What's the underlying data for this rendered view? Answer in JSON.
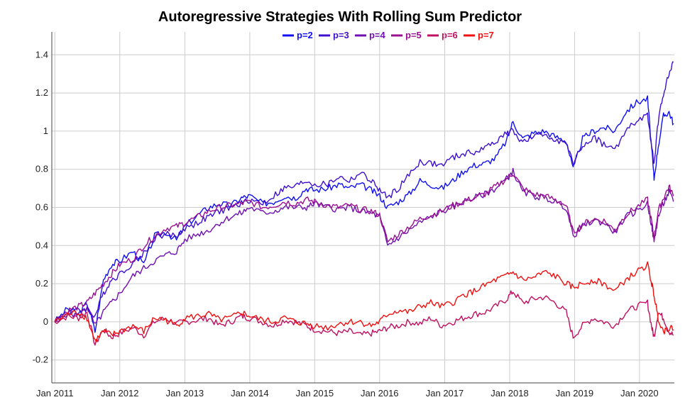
{
  "chart_data": {
    "type": "line",
    "title": "Autoregressive Strategies With Rolling Sum Predictor",
    "xlabel": "",
    "ylabel": "",
    "xlim": [
      "2010-12-15",
      "2020-07-15"
    ],
    "ylim": [
      -0.32,
      1.52
    ],
    "x_ticks": [
      "2011-01-01",
      "2012-01-01",
      "2013-01-01",
      "2014-01-01",
      "2015-01-01",
      "2016-01-01",
      "2017-01-01",
      "2018-01-01",
      "2019-01-01",
      "2020-01-01"
    ],
    "x_tick_labels": [
      "Jan 2011",
      "Jan 2012",
      "Jan 2013",
      "Jan 2014",
      "Jan 2015",
      "Jan 2016",
      "Jan 2017",
      "Jan 2018",
      "Jan 2019",
      "Jan 2020"
    ],
    "y_ticks": [
      -0.2,
      0,
      0.2,
      0.4,
      0.6,
      0.8,
      1,
      1.2,
      1.4
    ],
    "y_tick_labels": [
      "-0.2",
      "0",
      "0.2",
      "0.4",
      "0.6",
      "0.8",
      "1",
      "1.2",
      "1.4"
    ],
    "grid": true,
    "legend_position": "top-center",
    "x": [
      "2010-12-31",
      "2011-03-15",
      "2011-05-15",
      "2011-07-01",
      "2011-08-15",
      "2011-10-01",
      "2011-11-15",
      "2012-01-01",
      "2012-03-15",
      "2012-05-15",
      "2012-07-15",
      "2012-09-15",
      "2012-11-15",
      "2013-01-01",
      "2013-03-15",
      "2013-05-15",
      "2013-07-15",
      "2013-09-15",
      "2013-11-15",
      "2014-01-01",
      "2014-03-15",
      "2014-05-15",
      "2014-07-15",
      "2014-09-15",
      "2014-11-15",
      "2015-01-01",
      "2015-03-15",
      "2015-05-15",
      "2015-07-15",
      "2015-09-15",
      "2015-11-15",
      "2016-01-01",
      "2016-02-15",
      "2016-04-15",
      "2016-06-15",
      "2016-08-15",
      "2016-10-15",
      "2016-12-15",
      "2017-02-15",
      "2017-04-15",
      "2017-06-15",
      "2017-08-15",
      "2017-10-15",
      "2017-12-15",
      "2018-01-20",
      "2018-03-15",
      "2018-05-15",
      "2018-07-15",
      "2018-09-15",
      "2018-11-15",
      "2018-12-24",
      "2019-02-15",
      "2019-04-15",
      "2019-06-15",
      "2019-08-15",
      "2019-10-15",
      "2019-12-15",
      "2020-02-15",
      "2020-03-10",
      "2020-03-23",
      "2020-04-15",
      "2020-05-15",
      "2020-06-15",
      "2020-07-10"
    ],
    "series": [
      {
        "name": "p=2",
        "color": "#1010f0",
        "values": [
          0.0,
          0.07,
          0.04,
          0.1,
          -0.05,
          0.22,
          0.3,
          0.32,
          0.37,
          0.3,
          0.45,
          0.47,
          0.43,
          0.5,
          0.56,
          0.6,
          0.62,
          0.61,
          0.65,
          0.66,
          0.62,
          0.63,
          0.66,
          0.65,
          0.7,
          0.69,
          0.7,
          0.72,
          0.7,
          0.72,
          0.69,
          0.66,
          0.6,
          0.63,
          0.67,
          0.74,
          0.72,
          0.7,
          0.74,
          0.79,
          0.82,
          0.83,
          0.86,
          0.95,
          1.05,
          0.96,
          0.99,
          1.0,
          0.97,
          0.95,
          0.8,
          0.96,
          1.0,
          1.02,
          1.0,
          1.1,
          1.15,
          1.17,
          0.9,
          0.75,
          0.92,
          1.08,
          1.1,
          1.04
        ]
      },
      {
        "name": "p=3",
        "color": "#4010d0",
        "values": [
          0.0,
          0.05,
          0.06,
          0.07,
          0.03,
          0.15,
          0.22,
          0.25,
          0.31,
          0.36,
          0.44,
          0.46,
          0.45,
          0.49,
          0.52,
          0.55,
          0.58,
          0.6,
          0.62,
          0.64,
          0.62,
          0.66,
          0.7,
          0.71,
          0.74,
          0.72,
          0.72,
          0.76,
          0.74,
          0.78,
          0.74,
          0.69,
          0.65,
          0.7,
          0.77,
          0.84,
          0.83,
          0.82,
          0.86,
          0.88,
          0.89,
          0.91,
          0.95,
          0.99,
          1.0,
          0.94,
          0.97,
          0.98,
          0.96,
          0.93,
          0.83,
          0.92,
          0.97,
          0.93,
          0.9,
          1.0,
          1.05,
          1.08,
          0.92,
          0.82,
          1.05,
          1.2,
          1.3,
          1.36
        ]
      },
      {
        "name": "p=4",
        "color": "#7010b0",
        "values": [
          0.0,
          0.05,
          0.03,
          0.08,
          -0.02,
          0.05,
          0.1,
          0.15,
          0.24,
          0.28,
          0.32,
          0.35,
          0.37,
          0.43,
          0.46,
          0.48,
          0.52,
          0.55,
          0.57,
          0.6,
          0.57,
          0.58,
          0.6,
          0.6,
          0.6,
          0.62,
          0.6,
          0.59,
          0.6,
          0.58,
          0.57,
          0.55,
          0.4,
          0.44,
          0.48,
          0.52,
          0.55,
          0.58,
          0.6,
          0.63,
          0.65,
          0.67,
          0.7,
          0.75,
          0.79,
          0.68,
          0.66,
          0.65,
          0.63,
          0.6,
          0.45,
          0.5,
          0.53,
          0.52,
          0.47,
          0.55,
          0.58,
          0.62,
          0.5,
          0.42,
          0.55,
          0.62,
          0.68,
          0.63
        ]
      },
      {
        "name": "p=5",
        "color": "#9a1090",
        "values": [
          0.0,
          0.06,
          0.08,
          0.1,
          0.15,
          0.2,
          0.25,
          0.3,
          0.33,
          0.4,
          0.45,
          0.49,
          0.5,
          0.52,
          0.55,
          0.58,
          0.6,
          0.61,
          0.62,
          0.63,
          0.6,
          0.61,
          0.63,
          0.62,
          0.64,
          0.63,
          0.61,
          0.6,
          0.61,
          0.59,
          0.58,
          0.56,
          0.42,
          0.46,
          0.5,
          0.54,
          0.56,
          0.58,
          0.61,
          0.63,
          0.65,
          0.67,
          0.71,
          0.75,
          0.78,
          0.7,
          0.67,
          0.66,
          0.64,
          0.61,
          0.47,
          0.51,
          0.54,
          0.53,
          0.48,
          0.56,
          0.6,
          0.64,
          0.52,
          0.44,
          0.58,
          0.65,
          0.71,
          0.66
        ]
      },
      {
        "name": "p=6",
        "color": "#c01060",
        "values": [
          0.0,
          0.03,
          0.02,
          0.05,
          -0.12,
          -0.04,
          -0.08,
          -0.06,
          -0.03,
          -0.07,
          0.0,
          0.02,
          -0.01,
          0.0,
          0.01,
          0.02,
          -0.02,
          0.0,
          0.03,
          0.02,
          0.0,
          -0.02,
          0.01,
          0.0,
          -0.02,
          -0.04,
          -0.05,
          -0.06,
          -0.05,
          -0.07,
          -0.06,
          -0.05,
          -0.03,
          -0.02,
          0.0,
          -0.01,
          0.02,
          -0.02,
          0.0,
          0.02,
          0.04,
          0.05,
          0.08,
          0.12,
          0.16,
          0.1,
          0.12,
          0.13,
          0.1,
          0.05,
          -0.08,
          -0.02,
          0.02,
          0.0,
          -0.02,
          0.05,
          0.08,
          0.1,
          -0.03,
          -0.08,
          0.05,
          0.02,
          -0.05,
          -0.07
        ]
      },
      {
        "name": "p=7",
        "color": "#f01010",
        "values": [
          0.0,
          0.04,
          0.05,
          0.02,
          -0.1,
          -0.05,
          -0.07,
          -0.05,
          -0.02,
          -0.05,
          0.02,
          0.01,
          -0.02,
          0.02,
          0.03,
          0.04,
          0.01,
          0.02,
          0.05,
          0.03,
          0.01,
          0.0,
          0.02,
          0.0,
          -0.01,
          -0.02,
          -0.03,
          -0.01,
          0.0,
          0.0,
          -0.02,
          0.0,
          0.04,
          0.06,
          0.05,
          0.08,
          0.1,
          0.08,
          0.1,
          0.14,
          0.16,
          0.19,
          0.22,
          0.24,
          0.26,
          0.22,
          0.23,
          0.26,
          0.24,
          0.2,
          0.18,
          0.2,
          0.22,
          0.2,
          0.16,
          0.22,
          0.26,
          0.3,
          0.2,
          0.14,
          0.02,
          -0.05,
          -0.03,
          -0.04
        ]
      }
    ]
  }
}
